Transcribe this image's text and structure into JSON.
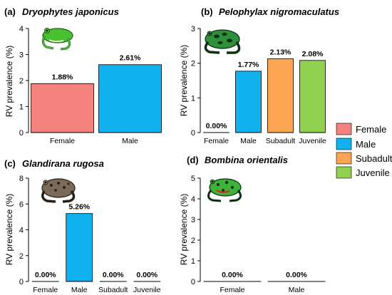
{
  "colors": {
    "Female": "#f4827f",
    "Male": "#11b1f0",
    "Subadult": "#fca553",
    "Juvenile": "#92d050",
    "axis": "#000000",
    "frog_green": "#49c232",
    "frog_dark": "#1a5e2a",
    "frog_brown": "#7c6a58",
    "frog_red": "#d9261c"
  },
  "legend": {
    "items": [
      {
        "label": "Female",
        "color_key": "Female"
      },
      {
        "label": "Male",
        "color_key": "Male"
      },
      {
        "label": "Subadult",
        "color_key": "Subadult"
      },
      {
        "label": "Juvenile",
        "color_key": "Juvenile"
      }
    ]
  },
  "chart_data": [
    {
      "panel": "(a)",
      "species": "Dryophytes japonicus",
      "type": "bar",
      "ylabel": "RV prevalence (%)",
      "ylim": [
        0,
        4
      ],
      "yticks": [
        "0",
        "1",
        "2",
        "3",
        "4"
      ],
      "categories": [
        "Female",
        "Male"
      ],
      "values": [
        1.88,
        2.61
      ],
      "value_labels": [
        "1.88%",
        "2.61%"
      ],
      "icon": "tree-frog-icon"
    },
    {
      "panel": "(b)",
      "species": "Pelophylax nigromaculatus",
      "type": "bar",
      "ylabel": "RV prevalence (%)",
      "ylim": [
        0,
        3
      ],
      "yticks": [
        "0",
        "1",
        "2",
        "3"
      ],
      "categories": [
        "Female",
        "Male",
        "Subadult",
        "Juvenile"
      ],
      "values": [
        0.0,
        1.77,
        2.13,
        2.08
      ],
      "value_labels": [
        "0.00%",
        "1.77%",
        "2.13%",
        "2.08%"
      ],
      "icon": "spotted-frog-icon"
    },
    {
      "panel": "(c)",
      "species": "Glandirana rugosa",
      "type": "bar",
      "ylabel": "RV prevalence (%)",
      "ylim": [
        0,
        8
      ],
      "yticks": [
        "0",
        "2",
        "4",
        "6",
        "8"
      ],
      "categories": [
        "Female",
        "Male",
        "Subadult",
        "Juvenile"
      ],
      "values": [
        0.0,
        5.26,
        0.0,
        0.0
      ],
      "value_labels": [
        "0.00%",
        "5.26%",
        "0.00%",
        "0.00%"
      ],
      "icon": "wrinkled-frog-icon"
    },
    {
      "panel": "(d)",
      "species": "Bombina orientalis",
      "type": "bar",
      "ylabel": "RV prevalence (%)",
      "ylim": [
        0,
        5
      ],
      "yticks": [
        "0",
        "1",
        "2",
        "3",
        "4",
        "5"
      ],
      "categories": [
        "Female",
        "Male"
      ],
      "values": [
        0.0,
        0.0
      ],
      "value_labels": [
        "0.00%",
        "0.00%"
      ],
      "icon": "fire-bellied-toad-icon"
    }
  ]
}
